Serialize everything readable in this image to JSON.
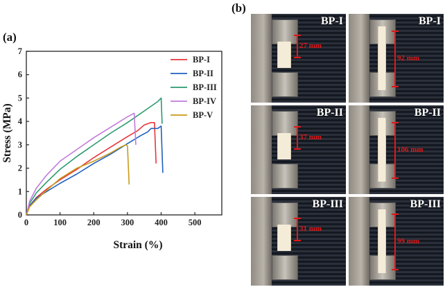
{
  "panel_a_label": "(a)",
  "panel_b_label": "(b)",
  "chart_data": {
    "type": "line",
    "xlabel": "Strain (%)",
    "ylabel": "Stress (MPa)",
    "xlim": [
      0,
      580
    ],
    "ylim": [
      0,
      7
    ],
    "xticks": [
      0,
      100,
      200,
      300,
      400,
      500
    ],
    "yticks": [
      0,
      1,
      2,
      3,
      4,
      5,
      6,
      7
    ],
    "legend_position": "top-right",
    "series": [
      {
        "name": "BP-I",
        "color": "#e8353a",
        "x": [
          0,
          10,
          30,
          60,
          100,
          150,
          200,
          250,
          300,
          330,
          350,
          370,
          380,
          385
        ],
        "y": [
          0,
          0.4,
          0.75,
          1.1,
          1.5,
          1.95,
          2.45,
          2.9,
          3.35,
          3.6,
          3.85,
          3.95,
          3.95,
          2.2
        ]
      },
      {
        "name": "BP-II",
        "color": "#1f5fbf",
        "x": [
          0,
          10,
          30,
          60,
          100,
          150,
          200,
          250,
          300,
          340,
          360,
          370,
          390,
          400,
          405
        ],
        "y": [
          0,
          0.4,
          0.72,
          1.0,
          1.35,
          1.75,
          2.2,
          2.6,
          3.05,
          3.4,
          3.55,
          3.7,
          3.7,
          3.8,
          1.8
        ]
      },
      {
        "name": "BP-III",
        "color": "#2a9a6e",
        "x": [
          0,
          10,
          30,
          60,
          100,
          150,
          200,
          250,
          300,
          350,
          390,
          400,
          403
        ],
        "y": [
          0,
          0.5,
          0.95,
          1.4,
          1.95,
          2.5,
          3.0,
          3.5,
          3.95,
          4.45,
          4.85,
          5.0,
          3.9
        ]
      },
      {
        "name": "BP-IV",
        "color": "#c07adc",
        "x": [
          0,
          10,
          30,
          60,
          100,
          150,
          200,
          250,
          300,
          320,
          325
        ],
        "y": [
          0,
          0.6,
          1.15,
          1.7,
          2.3,
          2.8,
          3.3,
          3.75,
          4.2,
          4.35,
          3.0
        ]
      },
      {
        "name": "BP-V",
        "color": "#c99a1a",
        "x": [
          0,
          10,
          30,
          60,
          100,
          150,
          200,
          250,
          280,
          295,
          300,
          305
        ],
        "y": [
          0,
          0.35,
          0.65,
          1.05,
          1.55,
          2.0,
          2.3,
          2.65,
          2.9,
          3.0,
          2.95,
          1.3
        ]
      }
    ]
  },
  "photos": [
    {
      "sample": "BP-I",
      "length": "27 mm",
      "state": "initial"
    },
    {
      "sample": "BP-I",
      "length": "92 mm",
      "state": "stretched"
    },
    {
      "sample": "BP-II",
      "length": "37 mm",
      "state": "initial"
    },
    {
      "sample": "BP-II",
      "length": "106 mm",
      "state": "stretched"
    },
    {
      "sample": "BP-III",
      "length": "31 mm",
      "state": "initial"
    },
    {
      "sample": "BP-III",
      "length": "99 mm",
      "state": "stretched"
    }
  ]
}
